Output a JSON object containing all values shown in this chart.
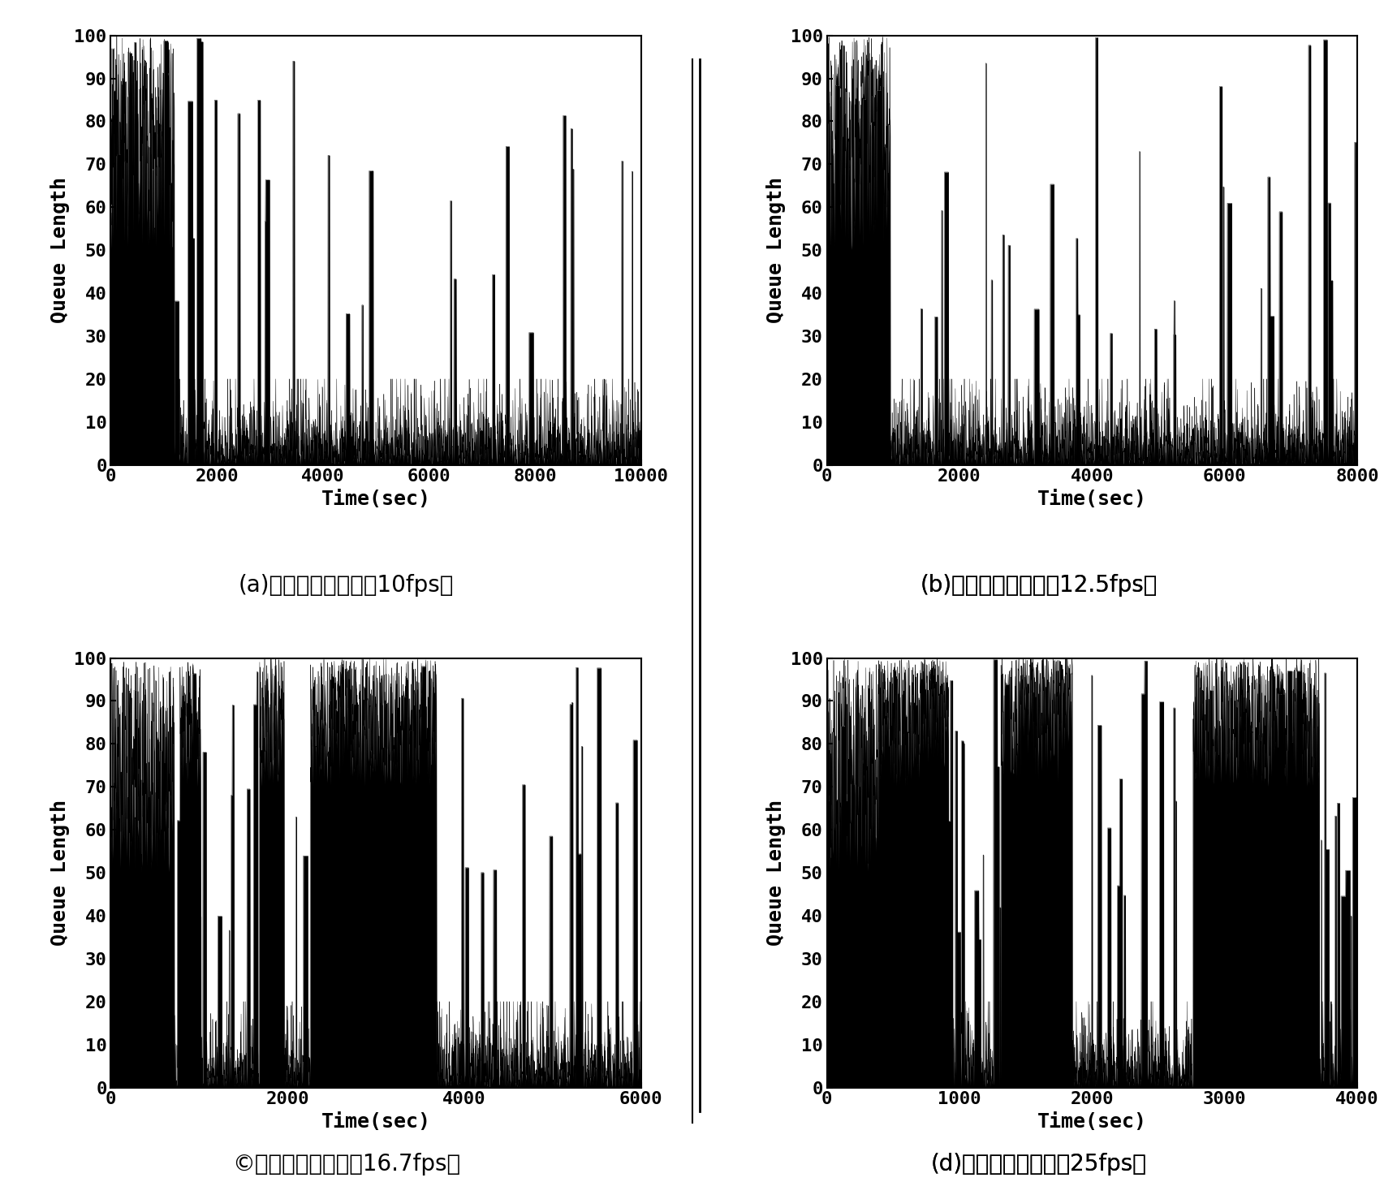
{
  "subplots": [
    {
      "label": "(a)视频帧发送速率（10fps）",
      "xlabel": "Time(sec)",
      "ylabel": "Queue Length",
      "xlim": [
        0,
        10000
      ],
      "ylim": [
        0,
        100
      ],
      "xticks": [
        0,
        2000,
        4000,
        6000,
        8000,
        10000
      ],
      "yticks": [
        0,
        10,
        20,
        30,
        40,
        50,
        60,
        70,
        80,
        90,
        100
      ],
      "fps": 10,
      "seed": 42
    },
    {
      "label": "(b)视频帧发送速率（12.5fps）",
      "xlabel": "Time(sec)",
      "ylabel": "Queue Length",
      "xlim": [
        0,
        8000
      ],
      "ylim": [
        0,
        100
      ],
      "xticks": [
        0,
        2000,
        4000,
        6000,
        8000
      ],
      "yticks": [
        0,
        10,
        20,
        30,
        40,
        50,
        60,
        70,
        80,
        90,
        100
      ],
      "fps": 12.5,
      "seed": 123
    },
    {
      "label": "©视频帧发送速率（16.7fps）",
      "xlabel": "Time(sec)",
      "ylabel": "Queue Length",
      "xlim": [
        0,
        6000
      ],
      "ylim": [
        0,
        100
      ],
      "xticks": [
        0,
        2000,
        4000,
        6000
      ],
      "yticks": [
        0,
        10,
        20,
        30,
        40,
        50,
        60,
        70,
        80,
        90,
        100
      ],
      "fps": 16.7,
      "seed": 77
    },
    {
      "label": "(d)视频帧发送速率（25fps）",
      "xlabel": "Time(sec)",
      "ylabel": "Queue Length",
      "xlim": [
        0,
        4000
      ],
      "ylim": [
        0,
        100
      ],
      "xticks": [
        0,
        1000,
        2000,
        3000,
        4000
      ],
      "yticks": [
        0,
        10,
        20,
        30,
        40,
        50,
        60,
        70,
        80,
        90,
        100
      ],
      "fps": 25,
      "seed": 200
    }
  ],
  "fig_bg": "#ffffff",
  "plot_bg": "#ffffff",
  "line_color": "#000000",
  "tick_fontsize": 16,
  "label_fontsize": 18,
  "caption_fontsize": 20,
  "title_fontsize": 22
}
